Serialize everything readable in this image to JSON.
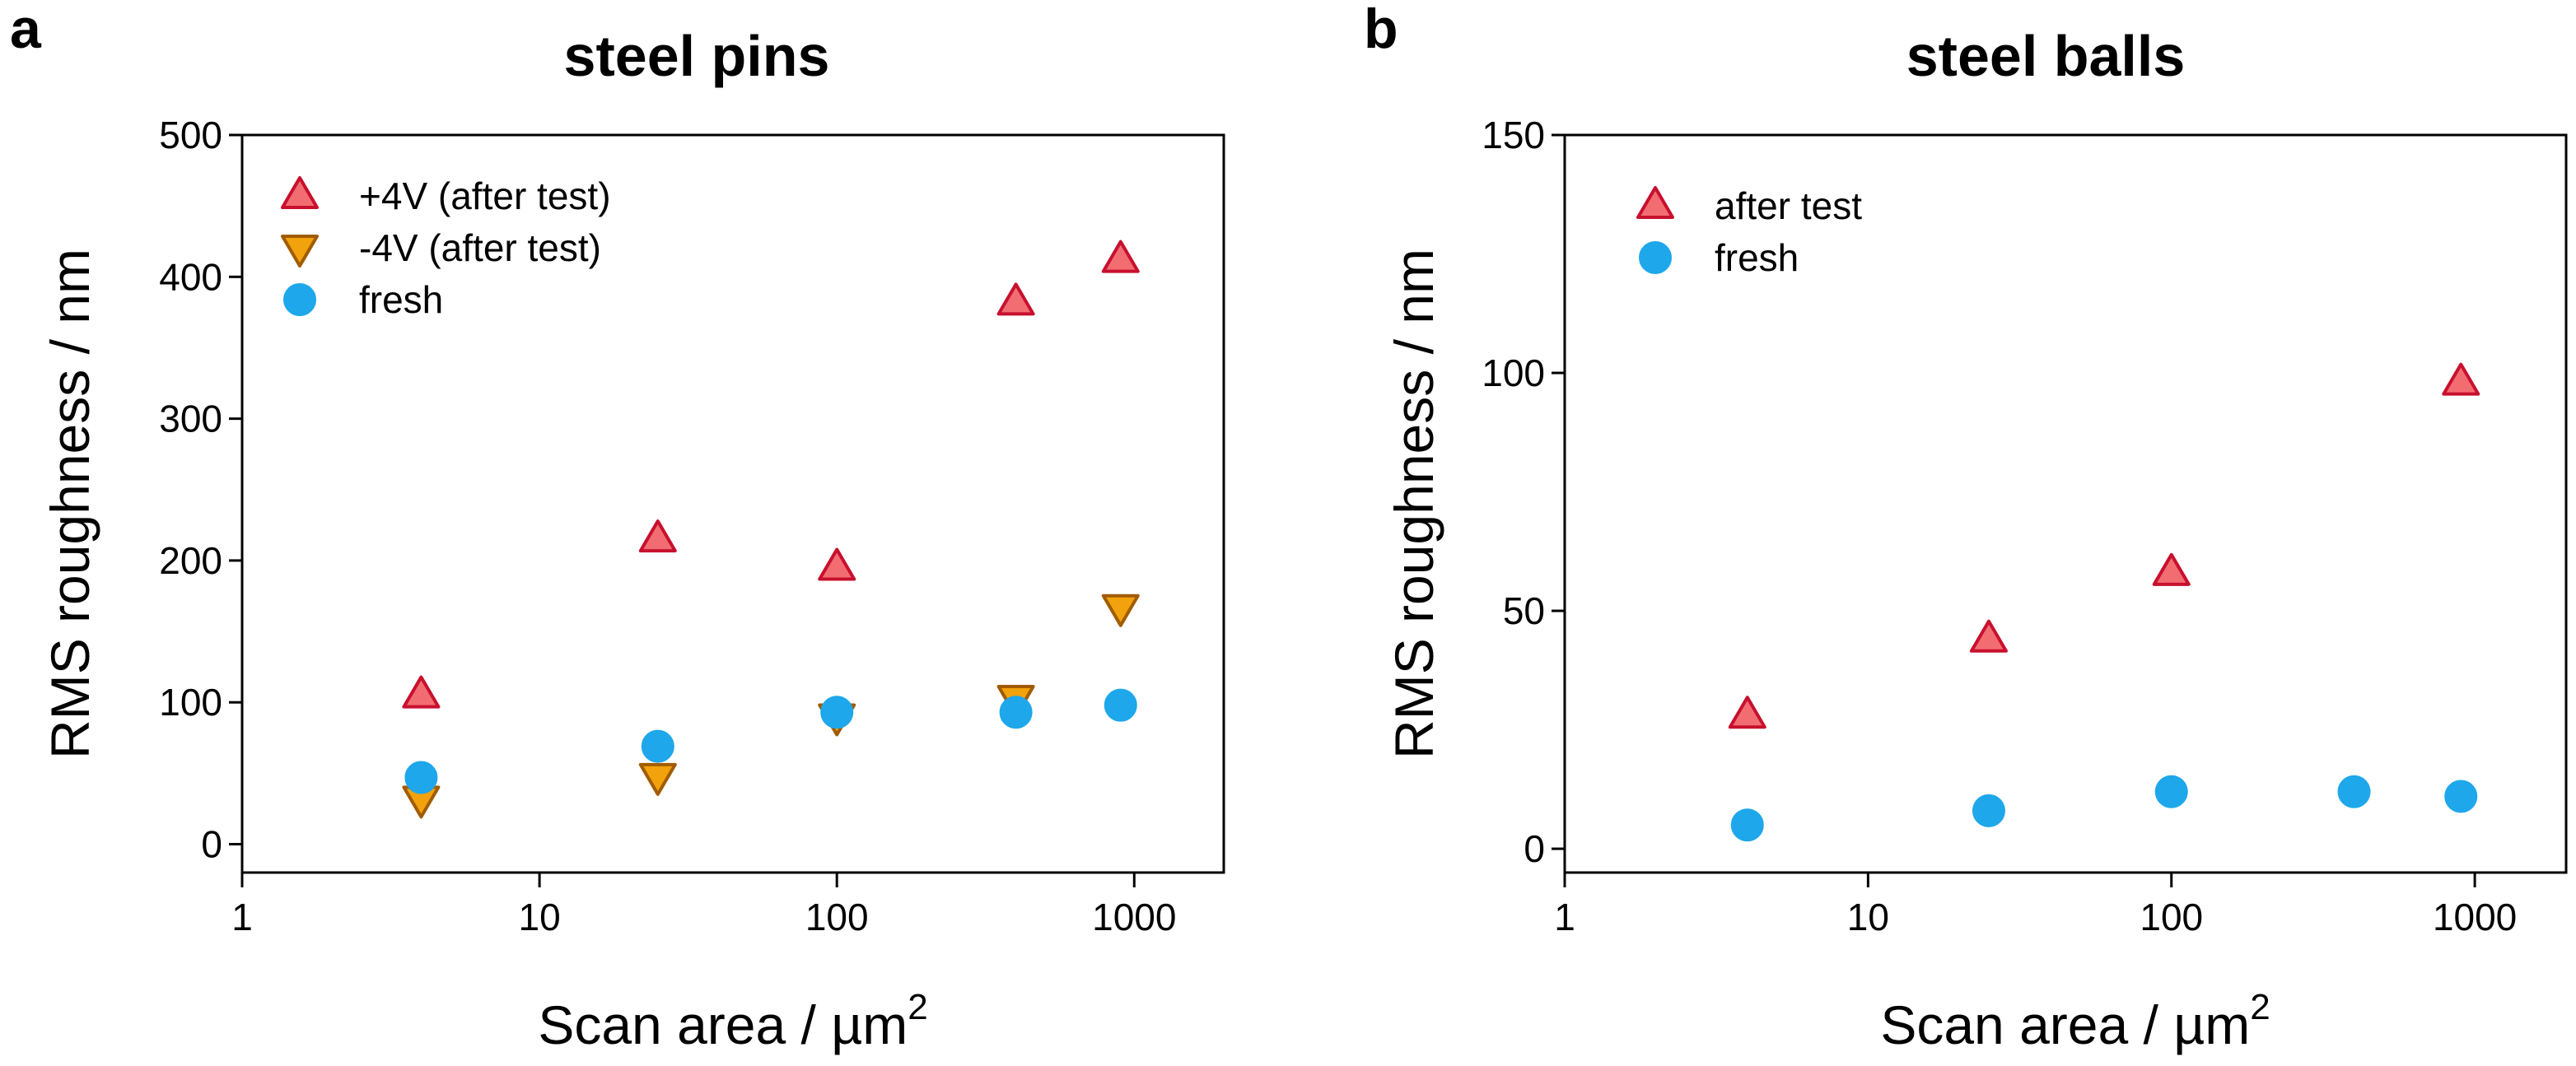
{
  "chart_data": [
    {
      "type": "scatter",
      "panel_letter": "a",
      "title": "steel pins",
      "xlabel": "Scan area / µm",
      "xlabel_superscript": "2",
      "ylabel": "RMS roughness / nm",
      "xscale": "log",
      "xlim": [
        1,
        2000
      ],
      "ylim": [
        -20,
        500
      ],
      "xticks": [
        1,
        10,
        100,
        1000
      ],
      "xtick_labels": [
        "1",
        "10",
        "100",
        "1000"
      ],
      "yticks": [
        0,
        100,
        200,
        300,
        400,
        500
      ],
      "ytick_labels": [
        "0",
        "100",
        "200",
        "300",
        "400",
        "500"
      ],
      "legend_position": "top-left",
      "series": [
        {
          "name": "+4V (after test)",
          "marker": "triangle-up",
          "color": "#f26d72",
          "edge": "#c8102e",
          "x": [
            4,
            25,
            100,
            400,
            900
          ],
          "y": [
            105,
            215,
            195,
            382,
            412
          ]
        },
        {
          "name": "-4V (after test)",
          "marker": "triangle-down",
          "color": "#f2a20c",
          "edge": "#a15c00",
          "x": [
            4,
            25,
            100,
            400,
            900
          ],
          "y": [
            32,
            48,
            90,
            103,
            167
          ]
        },
        {
          "name": "fresh",
          "marker": "circle",
          "color": "#1ea7ea",
          "edge": "#1ea7ea",
          "x": [
            4,
            25,
            100,
            400,
            900
          ],
          "y": [
            47,
            69,
            93,
            93,
            98
          ]
        }
      ]
    },
    {
      "type": "scatter",
      "panel_letter": "b",
      "title": "steel balls",
      "xlabel": "Scan area / µm",
      "xlabel_superscript": "2",
      "ylabel": "RMS roughness / nm",
      "xscale": "log",
      "xlim": [
        1,
        2000
      ],
      "ylim": [
        -5,
        150
      ],
      "xticks": [
        1,
        10,
        100,
        1000
      ],
      "xtick_labels": [
        "1",
        "10",
        "100",
        "1000"
      ],
      "yticks": [
        0,
        50,
        100,
        150
      ],
      "ytick_labels": [
        "0",
        "50",
        "100",
        "150"
      ],
      "legend_position": "top-left",
      "series": [
        {
          "name": "after test",
          "marker": "triangle-up",
          "color": "#f26d72",
          "edge": "#c8102e",
          "x": [
            4,
            25,
            100,
            900
          ],
          "y": [
            28,
            44,
            58,
            98
          ]
        },
        {
          "name": "fresh",
          "marker": "circle",
          "color": "#1ea7ea",
          "edge": "#1ea7ea",
          "x": [
            4,
            25,
            100,
            400,
            900
          ],
          "y": [
            5,
            8,
            12,
            12,
            11
          ]
        }
      ]
    }
  ]
}
